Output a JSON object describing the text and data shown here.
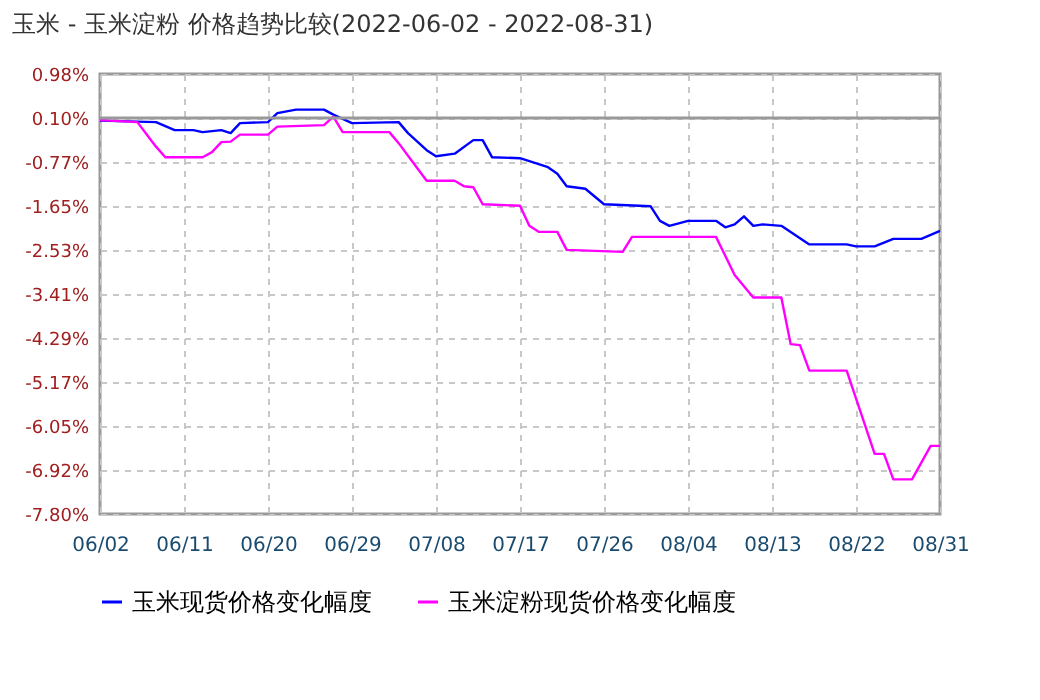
{
  "chart_data": {
    "type": "line",
    "title": "玉米 - 玉米淀粉 价格趋势比较(2022-06-02 - 2022-08-31)",
    "series": [
      {
        "name": "玉米现货价格变化幅度",
        "color": "#0000ff",
        "x": [
          "2022-06-02",
          "2022-06-08",
          "2022-06-10",
          "2022-06-12",
          "2022-06-13",
          "2022-06-15",
          "2022-06-16",
          "2022-06-17",
          "2022-06-20",
          "2022-06-21",
          "2022-06-23",
          "2022-06-26",
          "2022-06-27",
          "2022-06-29",
          "2022-07-04",
          "2022-07-05",
          "2022-07-07",
          "2022-07-08",
          "2022-07-10",
          "2022-07-12",
          "2022-07-13",
          "2022-07-14",
          "2022-07-17",
          "2022-07-20",
          "2022-07-21",
          "2022-07-22",
          "2022-07-24",
          "2022-07-26",
          "2022-07-31",
          "2022-08-01",
          "2022-08-02",
          "2022-08-04",
          "2022-08-07",
          "2022-08-08",
          "2022-08-09",
          "2022-08-10",
          "2022-08-11",
          "2022-08-12",
          "2022-08-14",
          "2022-08-17",
          "2022-08-21",
          "2022-08-22",
          "2022-08-24",
          "2022-08-26",
          "2022-08-29",
          "2022-08-31"
        ],
        "values": [
          0.05,
          0.02,
          -0.14,
          -0.14,
          -0.18,
          -0.14,
          -0.2,
          0.0,
          0.02,
          0.2,
          0.27,
          0.27,
          0.17,
          0.0,
          0.02,
          -0.2,
          -0.54,
          -0.66,
          -0.61,
          -0.34,
          -0.34,
          -0.68,
          -0.7,
          -0.88,
          -1.01,
          -1.26,
          -1.31,
          -1.62,
          -1.66,
          -1.95,
          -2.05,
          -1.95,
          -1.95,
          -2.08,
          -2.02,
          -1.86,
          -2.05,
          -2.02,
          -2.05,
          -2.42,
          -2.42,
          -2.46,
          -2.46,
          -2.31,
          -2.31,
          -2.15
        ]
      },
      {
        "name": "玉米淀粉现货价格变化幅度",
        "color": "#ff00ff",
        "x": [
          "2022-06-02",
          "2022-06-06",
          "2022-06-08",
          "2022-06-09",
          "2022-06-13",
          "2022-06-14",
          "2022-06-15",
          "2022-06-16",
          "2022-06-17",
          "2022-06-20",
          "2022-06-21",
          "2022-06-26",
          "2022-06-27",
          "2022-06-28",
          "2022-07-03",
          "2022-07-04",
          "2022-07-06",
          "2022-07-07",
          "2022-07-10",
          "2022-07-11",
          "2022-07-12",
          "2022-07-13",
          "2022-07-17",
          "2022-07-18",
          "2022-07-19",
          "2022-07-21",
          "2022-07-22",
          "2022-07-28",
          "2022-07-29",
          "2022-08-07",
          "2022-08-09",
          "2022-08-11",
          "2022-08-14",
          "2022-08-15",
          "2022-08-16",
          "2022-08-17",
          "2022-08-21",
          "2022-08-24",
          "2022-08-25",
          "2022-08-26",
          "2022-08-28",
          "2022-08-30",
          "2022-08-31"
        ],
        "values": [
          0.06,
          0.02,
          -0.47,
          -0.68,
          -0.68,
          -0.58,
          -0.38,
          -0.37,
          -0.23,
          -0.23,
          -0.07,
          -0.04,
          0.13,
          -0.18,
          -0.18,
          -0.4,
          -0.9,
          -1.15,
          -1.15,
          -1.26,
          -1.28,
          -1.62,
          -1.65,
          -2.05,
          -2.17,
          -2.17,
          -2.53,
          -2.57,
          -2.27,
          -2.27,
          -3.03,
          -3.48,
          -3.48,
          -4.41,
          -4.43,
          -4.94,
          -4.94,
          -6.6,
          -6.6,
          -7.11,
          -7.11,
          -6.44,
          -6.44
        ]
      }
    ],
    "xlim": [
      "2022-06-02",
      "2022-08-31"
    ],
    "xticks": [
      {
        "value": "2022-06-02",
        "label": "06/02"
      },
      {
        "value": "2022-06-11",
        "label": "06/11"
      },
      {
        "value": "2022-06-20",
        "label": "06/20"
      },
      {
        "value": "2022-06-29",
        "label": "06/29"
      },
      {
        "value": "2022-07-08",
        "label": "07/08"
      },
      {
        "value": "2022-07-17",
        "label": "07/17"
      },
      {
        "value": "2022-07-26",
        "label": "07/26"
      },
      {
        "value": "2022-08-04",
        "label": "08/04"
      },
      {
        "value": "2022-08-13",
        "label": "08/13"
      },
      {
        "value": "2022-08-22",
        "label": "08/22"
      },
      {
        "value": "2022-08-31",
        "label": "08/31"
      }
    ],
    "ylim": [
      -7.8,
      0.98
    ],
    "yticks": [
      {
        "value": -7.8,
        "label": "-7.80%"
      },
      {
        "value": -6.92,
        "label": "-6.92%"
      },
      {
        "value": -6.05,
        "label": "-6.05%"
      },
      {
        "value": -5.17,
        "label": "-5.17%"
      },
      {
        "value": -4.29,
        "label": "-4.29%"
      },
      {
        "value": -3.41,
        "label": "-3.41%"
      },
      {
        "value": -2.53,
        "label": "-2.53%"
      },
      {
        "value": -1.65,
        "label": "-1.65%"
      },
      {
        "value": -0.77,
        "label": "-0.77%"
      },
      {
        "value": 0.1,
        "label": "0.10%"
      },
      {
        "value": 0.98,
        "label": "0.98%"
      }
    ],
    "ref_lines": [
      {
        "axis": "y",
        "value": 0.1,
        "color": "#999999"
      }
    ],
    "grid": true,
    "legend": "bottom",
    "marker": "none",
    "line_style": "solid"
  }
}
